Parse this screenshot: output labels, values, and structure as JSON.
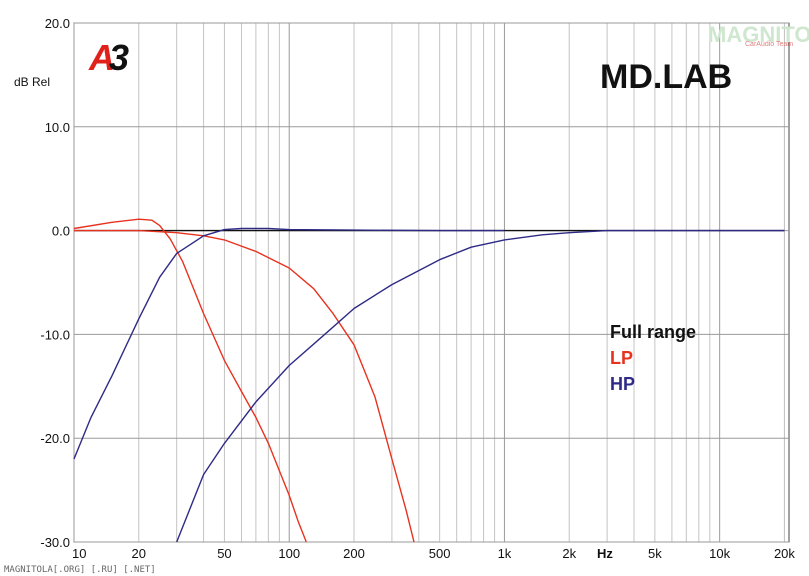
{
  "chart_data": {
    "type": "line",
    "xscale": "log",
    "xlim": [
      10,
      21000
    ],
    "ylim": [
      -30,
      20
    ],
    "ylabel": "dB Rel",
    "xunit": "Hz",
    "grid": true,
    "yticks": [
      "20.0",
      "10.0",
      "0.0",
      "-10.0",
      "-20.0",
      "-30.0"
    ],
    "ytick_values": [
      20,
      10,
      0,
      -10,
      -20,
      -30
    ],
    "xticks": [
      "10",
      "20",
      "50",
      "100",
      "200",
      "500",
      "1k",
      "2k",
      "5k",
      "10k",
      "20k"
    ],
    "xtick_values": [
      10,
      20,
      50,
      100,
      200,
      500,
      1000,
      2000,
      5000,
      10000,
      20000
    ],
    "legend": [
      "Full range",
      "LP",
      "HP"
    ],
    "legend_placement": "right",
    "series": [
      {
        "name": "Full range",
        "color": "#111111",
        "x": [
          10,
          20,
          50,
          100,
          200,
          500,
          1000,
          5000,
          10000,
          20000
        ],
        "y": [
          0,
          0,
          0,
          0,
          0,
          0,
          0,
          0,
          0,
          0
        ]
      },
      {
        "name": "LP",
        "color": "#e8321e",
        "x": [
          10,
          15,
          20,
          23,
          25,
          28,
          32,
          40,
          50,
          60,
          70,
          80,
          100,
          110,
          120
        ],
        "y": [
          0.2,
          0.8,
          1.1,
          1.0,
          0.5,
          -0.8,
          -3,
          -8,
          -12.5,
          -15.5,
          -18,
          -20.5,
          -25.5,
          -28,
          -30
        ]
      },
      {
        "name": "LP",
        "color": "#e8321e",
        "x": [
          10,
          20,
          30,
          40,
          50,
          70,
          100,
          130,
          160,
          200,
          250,
          300,
          350,
          380
        ],
        "y": [
          0,
          0,
          -0.2,
          -0.5,
          -0.9,
          -2,
          -3.6,
          -5.6,
          -8,
          -11,
          -16,
          -22,
          -27,
          -30
        ]
      },
      {
        "name": "HP",
        "color": "#2e2a86",
        "x": [
          10,
          12,
          15,
          20,
          25,
          30,
          40,
          50,
          60,
          80,
          100,
          200,
          500,
          1000
        ],
        "y": [
          -22,
          -18,
          -14,
          -8.5,
          -4.5,
          -2.2,
          -0.5,
          0.1,
          0.2,
          0.2,
          0.1,
          0.05,
          0,
          0
        ]
      },
      {
        "name": "HP",
        "color": "#2e2a86",
        "x": [
          30,
          40,
          50,
          70,
          100,
          150,
          200,
          300,
          500,
          700,
          1000,
          1500,
          2000,
          3000,
          5000,
          20000
        ],
        "y": [
          -30,
          -23.5,
          -20.5,
          -16.5,
          -13,
          -9.8,
          -7.5,
          -5.2,
          -2.8,
          -1.6,
          -0.9,
          -0.4,
          -0.2,
          0,
          0,
          0
        ]
      }
    ]
  },
  "branding": {
    "a3_logo_a": "A",
    "a3_logo_3": "3",
    "a3_color": "#e0201a",
    "title": "MD.LAB",
    "watermark": "MAGNITOLA",
    "watermark_sub": "CarAudio Team"
  },
  "footer": "MAGNITOLA[.ORG] [.RU] [.NET]"
}
